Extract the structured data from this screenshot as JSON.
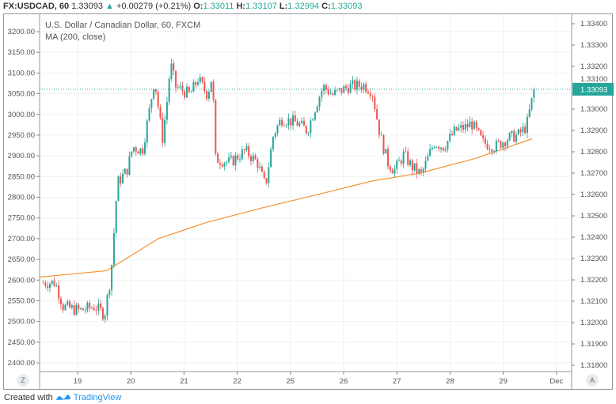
{
  "header": {
    "symbol": "FX:USDCAD, 60",
    "last": "1.33093",
    "change": "+0.00279 (+0.21%)",
    "o_label": "O:",
    "o": "1.33011",
    "h_label": "H:",
    "h": "1.33107",
    "l_label": "L:",
    "l": "1.32994",
    "c_label": "C:",
    "c": "1.33093"
  },
  "legend": {
    "title": "U.S. Dollar / Canadian Dollar, 60, FXCM",
    "indicator": "MA (200, close)"
  },
  "axis_buttons": {
    "left": "Z",
    "right": "A"
  },
  "footer": {
    "prefix": "Created with",
    "brand": "TradingView"
  },
  "colors": {
    "up": "#26a69a",
    "down": "#ef5350",
    "ma": "#f59331",
    "grid": "#eef2f6",
    "price_tag": "#26a69a"
  },
  "chart_data": {
    "type": "candlestick",
    "title": "U.S. Dollar / Canadian Dollar, 60, FXCM",
    "x_ticks": [
      "19",
      "20",
      "21",
      "22",
      "25",
      "26",
      "27",
      "28",
      "29",
      "Dec"
    ],
    "left_ticks": [
      "3200.00",
      "3150.00",
      "3100.00",
      "3050.00",
      "3000.00",
      "2950.00",
      "2900.00",
      "2850.00",
      "2800.00",
      "2750.00",
      "2700.00",
      "2650.00",
      "2600.00",
      "2550.00",
      "2500.00",
      "2450.00",
      "2400.00"
    ],
    "right_ticks": [
      "1.33400",
      "1.33300",
      "1.33200",
      "1.33100",
      "1.33000",
      "1.32900",
      "1.32800",
      "1.32700",
      "1.32600",
      "1.32500",
      "1.32400",
      "1.32300",
      "1.32200",
      "1.32100",
      "1.32000",
      "1.31900",
      "1.31800"
    ],
    "yrange": [
      1.318,
      1.334
    ],
    "last_price": "1.33093",
    "close_path_days_from_19": [
      [
        -0.69,
        1.32187
      ],
      [
        -0.42,
        1.32187
      ],
      [
        -0.27,
        1.32075
      ],
      [
        0.03,
        1.32056
      ],
      [
        0.33,
        1.32075
      ],
      [
        0.51,
        1.32037
      ],
      [
        0.63,
        1.32225
      ],
      [
        0.75,
        1.32655
      ],
      [
        0.93,
        1.32712
      ],
      [
        1.04,
        1.32824
      ],
      [
        1.22,
        1.32805
      ],
      [
        1.34,
        1.32974
      ],
      [
        1.45,
        1.33142
      ],
      [
        1.6,
        1.32861
      ],
      [
        1.7,
        1.33067
      ],
      [
        1.75,
        1.33217
      ],
      [
        1.85,
        1.33105
      ],
      [
        2.12,
        1.33067
      ],
      [
        2.27,
        1.33142
      ],
      [
        2.45,
        1.33067
      ],
      [
        2.54,
        1.33161
      ],
      [
        2.6,
        1.32768
      ],
      [
        2.87,
        1.32749
      ],
      [
        3.16,
        1.32805
      ],
      [
        3.39,
        1.32749
      ],
      [
        3.54,
        1.32637
      ],
      [
        3.69,
        1.3288
      ],
      [
        3.84,
        1.32955
      ],
      [
        4.13,
        1.32936
      ],
      [
        4.33,
        1.32899
      ],
      [
        4.51,
        1.3303
      ],
      [
        4.63,
        1.33105
      ],
      [
        4.81,
        1.33067
      ],
      [
        5.1,
        1.33105
      ],
      [
        5.4,
        1.33112
      ],
      [
        5.55,
        1.33086
      ],
      [
        5.7,
        1.3288
      ],
      [
        5.85,
        1.32749
      ],
      [
        5.97,
        1.32712
      ],
      [
        6.15,
        1.32787
      ],
      [
        6.3,
        1.3273
      ],
      [
        6.48,
        1.32693
      ],
      [
        6.6,
        1.32768
      ],
      [
        6.72,
        1.32843
      ],
      [
        6.9,
        1.32824
      ],
      [
        7.12,
        1.32899
      ],
      [
        7.34,
        1.32918
      ],
      [
        7.42,
        1.32936
      ],
      [
        7.64,
        1.32843
      ],
      [
        7.87,
        1.32824
      ],
      [
        8.09,
        1.32861
      ],
      [
        8.31,
        1.3288
      ],
      [
        8.46,
        1.32918
      ],
      [
        8.57,
        1.33049
      ],
      [
        8.63,
        1.33093
      ]
    ],
    "ma200_path": [
      [
        -0.72,
        1.32213
      ],
      [
        0.55,
        1.32243
      ],
      [
        1.52,
        1.32393
      ],
      [
        2.42,
        1.32468
      ],
      [
        3.46,
        1.32536
      ],
      [
        4.51,
        1.32599
      ],
      [
        5.55,
        1.32663
      ],
      [
        6.45,
        1.327
      ],
      [
        7.49,
        1.32768
      ],
      [
        8.57,
        1.32861
      ]
    ]
  }
}
